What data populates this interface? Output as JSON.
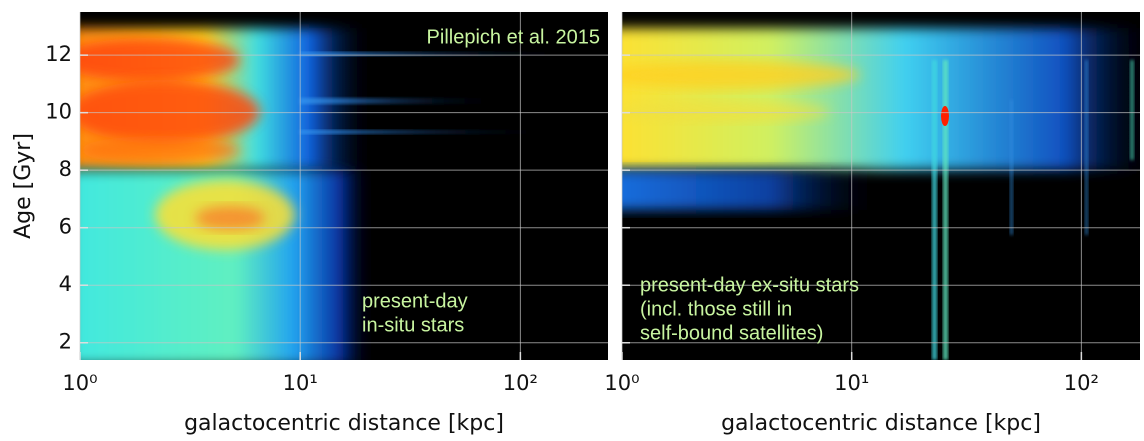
{
  "chart_data": [
    {
      "type": "heatmap",
      "xscale": "log",
      "grid": true,
      "grid_color": "#c8c8c8",
      "xlabel": "galactocentric distance [kpc]",
      "ylabel": "Age [Gyr]",
      "xlim": [
        1,
        250
      ],
      "ylim": [
        1.4,
        13.5
      ],
      "xticks": [
        {
          "value": 1,
          "label": "10⁰"
        },
        {
          "value": 10,
          "label": "10¹"
        },
        {
          "value": 100,
          "label": "10²"
        }
      ],
      "yticks": [
        2,
        4,
        6,
        8,
        10,
        12
      ],
      "show_ytick_labels": true,
      "annotation_color": "#c8f5a0",
      "annotations": [
        [
          "Pillepich et al. 2015"
        ],
        [
          "present-day",
          "in-situ stars"
        ]
      ]
    },
    {
      "type": "heatmap",
      "xscale": "log",
      "grid": true,
      "grid_color": "#c8c8c8",
      "xlabel": "galactocentric distance [kpc]",
      "xlim": [
        1,
        180
      ],
      "ylim": [
        1.4,
        13.5
      ],
      "xticks": [
        {
          "value": 1,
          "label": "10⁰"
        },
        {
          "value": 10,
          "label": "10¹"
        },
        {
          "value": 100,
          "label": "10²"
        }
      ],
      "yticks": [
        2,
        4,
        6,
        8,
        10,
        12
      ],
      "show_ytick_labels": false,
      "annotation_color": "#c8f5a0",
      "annotations": [
        [
          "present-day ex-situ stars",
          "(incl. those still in",
          "self-bound satellites)"
        ]
      ]
    }
  ]
}
